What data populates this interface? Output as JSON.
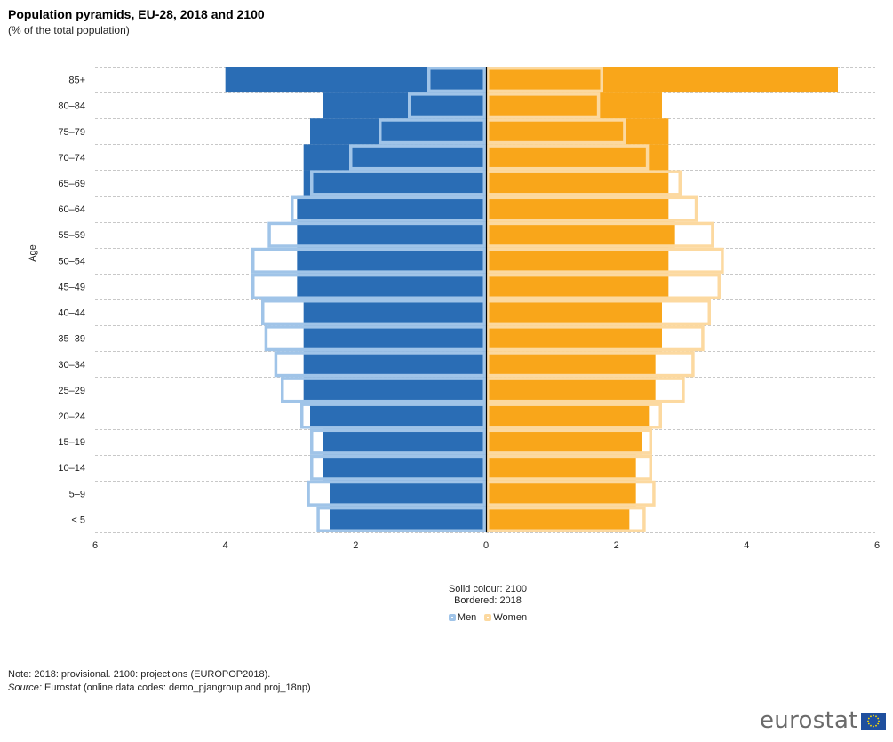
{
  "header": {
    "title": "Population pyramids, EU-28, 2018 and 2100",
    "subtitle": "(% of the total population)"
  },
  "legend": {
    "solid_label": "Solid colour: 2100",
    "bordered_label": "Bordered: 2018",
    "items": [
      {
        "label": "Men",
        "color": "#a0c4e8"
      },
      {
        "label": "Women",
        "color": "#fcd9a0"
      }
    ]
  },
  "footer": {
    "note": "Note: 2018:  provisional. 2100: projections (EUROPOP2018).",
    "source_label": "Source:",
    "source_text": " Eurostat (online data codes: demo_pjangroup and proj_18np)"
  },
  "logo": {
    "text": "eurostat",
    "icon": "eu-flag-icon"
  },
  "colors": {
    "men_solid": "#2a6db5",
    "men_border": "#a0c4e8",
    "women_solid": "#f9a61a",
    "women_border": "#fcd9a0",
    "axis": "#000000",
    "grid": "#c8c8c8"
  },
  "chart_data": {
    "type": "bar",
    "orientation": "horizontal-pyramid",
    "title": "Population pyramids, EU-28, 2018 and 2100",
    "subtitle": "(% of the total population)",
    "ylabel": "Age",
    "xlabel": "",
    "xlim": [
      -6,
      6
    ],
    "x_ticks": [
      -6,
      -4,
      -2,
      0,
      2,
      4,
      6
    ],
    "x_tick_labels": [
      "6",
      "4",
      "2",
      "0",
      "2",
      "4",
      "6"
    ],
    "grid": "horizontal dashed",
    "legend_position": "bottom-center",
    "categories": [
      "85+",
      "80–84",
      "75–79",
      "70–74",
      "65–69",
      "60–64",
      "55–59",
      "50–54",
      "45–49",
      "40–44",
      "35–39",
      "30–34",
      "25–29",
      "20–24",
      "15–19",
      "10–14",
      "5–9",
      "< 5"
    ],
    "series": [
      {
        "name": "Men 2100",
        "style": "solid",
        "side": "left",
        "values": [
          4.0,
          2.5,
          2.7,
          2.8,
          2.8,
          2.9,
          2.9,
          2.9,
          2.9,
          2.8,
          2.8,
          2.8,
          2.8,
          2.7,
          2.5,
          2.5,
          2.4,
          2.4
        ]
      },
      {
        "name": "Women 2100",
        "style": "solid",
        "side": "right",
        "values": [
          5.4,
          2.7,
          2.8,
          2.8,
          2.8,
          2.8,
          2.9,
          2.8,
          2.8,
          2.7,
          2.7,
          2.6,
          2.6,
          2.5,
          2.4,
          2.3,
          2.3,
          2.2
        ]
      },
      {
        "name": "Men 2018",
        "style": "bordered",
        "side": "left",
        "values": [
          0.9,
          1.2,
          1.65,
          2.1,
          2.7,
          3.0,
          3.35,
          3.6,
          3.6,
          3.45,
          3.4,
          3.25,
          3.15,
          2.85,
          2.7,
          2.7,
          2.75,
          2.6
        ]
      },
      {
        "name": "Women 2018",
        "style": "bordered",
        "side": "right",
        "values": [
          1.8,
          1.75,
          2.15,
          2.5,
          3.0,
          3.25,
          3.5,
          3.65,
          3.6,
          3.45,
          3.35,
          3.2,
          3.05,
          2.7,
          2.55,
          2.55,
          2.6,
          2.45
        ]
      }
    ]
  }
}
